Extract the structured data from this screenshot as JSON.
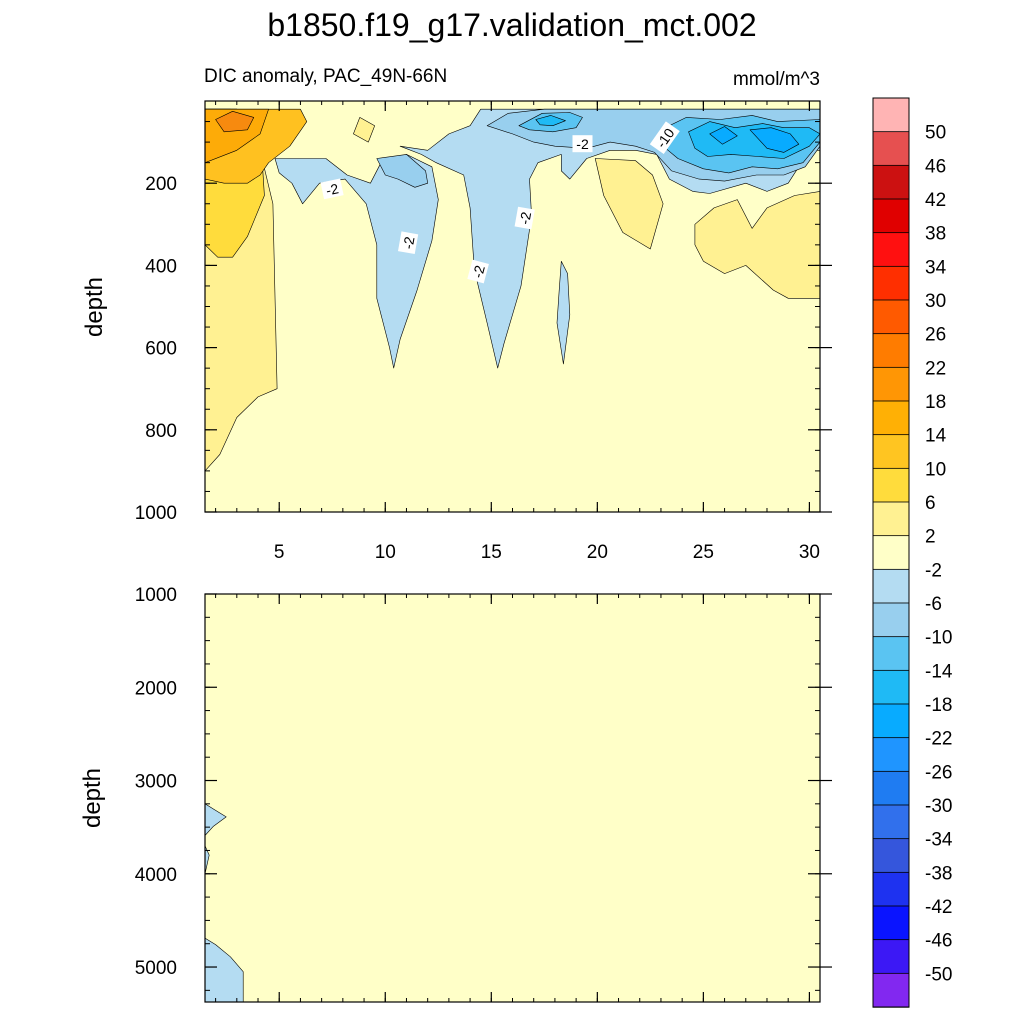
{
  "title": "b1850.f19_g17.validation_mct.002",
  "chart_data": [
    {
      "type": "heatmap",
      "subtitle": "DIC anomaly, PAC_49N-66N",
      "units": "mmol/m^3",
      "xlabel": "",
      "ylabel": "depth",
      "xlim": [
        1.5,
        30.5
      ],
      "ylim": [
        1000,
        0
      ],
      "x_ticks": [
        5,
        10,
        15,
        20,
        25,
        30
      ],
      "y_ticks": [
        200,
        400,
        600,
        800,
        1000
      ],
      "background_level": "-2 to 2",
      "regions": [
        {
          "level": "2",
          "color": "#fff192",
          "points": [
            [
              1.5,
              20
            ],
            [
              3,
              20
            ],
            [
              3.6,
              70
            ],
            [
              4.2,
              150
            ],
            [
              4.3,
              230
            ],
            [
              3.5,
              330
            ],
            [
              2.2,
              360
            ],
            [
              2.2,
              380
            ],
            [
              2.2,
              560
            ],
            [
              1.5,
              650
            ]
          ]
        },
        {
          "level": "2",
          "color": "#fff192",
          "points": [
            [
              1.5,
              900
            ],
            [
              2.2,
              860
            ],
            [
              3,
              770
            ],
            [
              4,
              720
            ],
            [
              4.9,
              700
            ],
            [
              4.7,
              250
            ],
            [
              4.1,
              120
            ],
            [
              3.3,
              60
            ],
            [
              2.7,
              20
            ],
            [
              1.5,
              20
            ]
          ]
        },
        {
          "level": "6",
          "color": "#ffdc3c",
          "points": [
            [
              1.5,
              20
            ],
            [
              3,
              20
            ],
            [
              3.6,
              70
            ],
            [
              4.2,
              150
            ],
            [
              4.3,
              230
            ],
            [
              3.5,
              330
            ],
            [
              2.8,
              380
            ],
            [
              2.1,
              380
            ],
            [
              1.5,
              350
            ]
          ]
        },
        {
          "level": "10",
          "color": "#ffc120",
          "points": [
            [
              1.5,
              20
            ],
            [
              6,
              20
            ],
            [
              6.3,
              50
            ],
            [
              5.5,
              110
            ],
            [
              4.5,
              150
            ],
            [
              4.1,
              180
            ],
            [
              3.5,
              200
            ],
            [
              2.4,
              200
            ],
            [
              1.5,
              190
            ]
          ]
        },
        {
          "level": "14",
          "color": "#fdab08",
          "points": [
            [
              1.5,
              20
            ],
            [
              4.5,
              20
            ],
            [
              4.1,
              80
            ],
            [
              3,
              120
            ],
            [
              1.5,
              150
            ]
          ]
        },
        {
          "level": "18",
          "color": "#f78a0f",
          "points": [
            [
              2,
              45
            ],
            [
              2.8,
              25
            ],
            [
              3.8,
              40
            ],
            [
              3.5,
              70
            ],
            [
              2.4,
              75
            ]
          ]
        },
        {
          "level": "2",
          "color": "#fff192",
          "points": [
            [
              8.8,
              40
            ],
            [
              9.5,
              60
            ],
            [
              9.2,
              100
            ],
            [
              8.5,
              80
            ]
          ]
        },
        {
          "level": "2",
          "color": "#fff192",
          "points": [
            [
              19.9,
              140
            ],
            [
              21.8,
              145
            ],
            [
              22.6,
              180
            ],
            [
              23.1,
              250
            ],
            [
              22.5,
              360
            ],
            [
              21.2,
              320
            ],
            [
              20.3,
              230
            ]
          ]
        },
        {
          "level": "2",
          "color": "#fff192",
          "points": [
            [
              24.6,
              300
            ],
            [
              25.5,
              260
            ],
            [
              26.6,
              240
            ],
            [
              27.3,
              310
            ],
            [
              28,
              260
            ],
            [
              29.3,
              230
            ],
            [
              30.5,
              220
            ],
            [
              30.5,
              480
            ],
            [
              29,
              480
            ],
            [
              28.3,
              460
            ],
            [
              27,
              400
            ],
            [
              26,
              420
            ],
            [
              25,
              390
            ],
            [
              24.6,
              350
            ]
          ]
        },
        {
          "level": "-2",
          "color": "#b4dcf2",
          "points": [
            [
              4.8,
              140
            ],
            [
              7.2,
              140
            ],
            [
              8.2,
              180
            ],
            [
              9.3,
              200
            ],
            [
              9.8,
              150
            ],
            [
              11,
              130
            ],
            [
              12.2,
              160
            ],
            [
              12.5,
              240
            ],
            [
              12.2,
              340
            ],
            [
              11.5,
              460
            ],
            [
              10.7,
              580
            ],
            [
              10.4,
              650
            ],
            [
              10.2,
              600
            ],
            [
              9.6,
              480
            ],
            [
              9.6,
              350
            ],
            [
              9.1,
              250
            ],
            [
              8.1,
              190
            ],
            [
              6.9,
              200
            ],
            [
              6.1,
              250
            ],
            [
              5.6,
              200
            ],
            [
              5,
              175
            ]
          ]
        },
        {
          "level": "-2",
          "color": "#b4dcf2",
          "points": [
            [
              10.7,
              110
            ],
            [
              12,
              120
            ],
            [
              13,
              80
            ],
            [
              14,
              60
            ],
            [
              14.5,
              20
            ],
            [
              30.5,
              20
            ],
            [
              30.5,
              120
            ],
            [
              30,
              120
            ],
            [
              29,
              200
            ],
            [
              28,
              220
            ],
            [
              27,
              200
            ],
            [
              25.3,
              225
            ],
            [
              24.5,
              220
            ],
            [
              23.4,
              190
            ],
            [
              22.8,
              130
            ],
            [
              21.8,
              120
            ],
            [
              20.6,
              120
            ],
            [
              19.5,
              140
            ],
            [
              18.7,
              190
            ],
            [
              18.3,
              170
            ],
            [
              18.3,
              130
            ],
            [
              17.2,
              150
            ],
            [
              16.8,
              190
            ],
            [
              16.9,
              280
            ],
            [
              16.4,
              450
            ],
            [
              15.6,
              590
            ],
            [
              15.3,
              650
            ],
            [
              14.8,
              540
            ],
            [
              14.2,
              410
            ],
            [
              14,
              260
            ],
            [
              13.7,
              180
            ],
            [
              12.4,
              150
            ],
            [
              11.7,
              130
            ]
          ]
        },
        {
          "level": "-2",
          "color": "#b4dcf2",
          "points": [
            [
              18.2,
              460
            ],
            [
              18.3,
              390
            ],
            [
              18.6,
              420
            ],
            [
              18.7,
              520
            ],
            [
              18.4,
              640
            ],
            [
              18.1,
              540
            ]
          ]
        },
        {
          "level": "-6",
          "color": "#98cfee",
          "points": [
            [
              9.6,
              140
            ],
            [
              11,
              130
            ],
            [
              11.9,
              170
            ],
            [
              12,
              200
            ],
            [
              11.4,
              210
            ],
            [
              10.6,
              190
            ],
            [
              10,
              180
            ]
          ]
        },
        {
          "level": "-6",
          "color": "#98cfee",
          "points": [
            [
              14.8,
              60
            ],
            [
              15.8,
              30
            ],
            [
              17.5,
              20
            ],
            [
              30.5,
              20
            ],
            [
              30.5,
              110
            ],
            [
              29.8,
              160
            ],
            [
              28.8,
              180
            ],
            [
              27.5,
              180
            ],
            [
              26,
              195
            ],
            [
              24.8,
              190
            ],
            [
              23.5,
              170
            ],
            [
              22.7,
              125
            ],
            [
              21.8,
              110
            ],
            [
              20.6,
              100
            ],
            [
              19.5,
              115
            ],
            [
              18,
              110
            ],
            [
              17,
              100
            ],
            [
              16,
              80
            ]
          ]
        },
        {
          "level": "-10",
          "color": "#5ac4f2",
          "points": [
            [
              16.3,
              60
            ],
            [
              17.4,
              30
            ],
            [
              18.7,
              28
            ],
            [
              19.3,
              40
            ],
            [
              19,
              65
            ],
            [
              17.9,
              75
            ],
            [
              16.8,
              70
            ]
          ]
        },
        {
          "level": "-10",
          "color": "#5ac4f2",
          "points": [
            [
              23,
              70
            ],
            [
              24.2,
              40
            ],
            [
              25.8,
              45
            ],
            [
              27.3,
              35
            ],
            [
              28.5,
              50
            ],
            [
              30.5,
              45
            ],
            [
              30.5,
              100
            ],
            [
              29.7,
              150
            ],
            [
              28.5,
              165
            ],
            [
              27.3,
              160
            ],
            [
              26.2,
              175
            ],
            [
              25,
              165
            ],
            [
              23.8,
              140
            ],
            [
              23.1,
              110
            ]
          ]
        },
        {
          "level": "-14",
          "color": "#1fbaf5",
          "points": [
            [
              17.1,
              45
            ],
            [
              17.8,
              35
            ],
            [
              18.5,
              48
            ],
            [
              17.9,
              60
            ],
            [
              17.3,
              58
            ]
          ]
        },
        {
          "level": "-14",
          "color": "#1fbaf5",
          "points": [
            [
              24.3,
              75
            ],
            [
              25.3,
              50
            ],
            [
              26.5,
              65
            ],
            [
              27.8,
              55
            ],
            [
              28.8,
              65
            ],
            [
              30,
              65
            ],
            [
              30.5,
              80
            ],
            [
              30,
              110
            ],
            [
              28.8,
              140
            ],
            [
              27.6,
              135
            ],
            [
              26.3,
              130
            ],
            [
              25.2,
              135
            ],
            [
              24.6,
              115
            ]
          ]
        },
        {
          "level": "-18",
          "color": "#08abff",
          "points": [
            [
              25.3,
              80
            ],
            [
              26,
              62
            ],
            [
              26.6,
              85
            ],
            [
              25.9,
              105
            ]
          ]
        },
        {
          "level": "-18",
          "color": "#08abff",
          "points": [
            [
              27.2,
              70
            ],
            [
              28.2,
              65
            ],
            [
              29.1,
              80
            ],
            [
              29.5,
              105
            ],
            [
              28.8,
              125
            ],
            [
              28,
              115
            ]
          ]
        }
      ],
      "labels": [
        {
          "text": "-2",
          "x": 7.5,
          "y": 215,
          "rotate": -12
        },
        {
          "text": "-2",
          "x": 11.1,
          "y": 345,
          "rotate": -80
        },
        {
          "text": "-2",
          "x": 14.4,
          "y": 415,
          "rotate": -75
        },
        {
          "text": "-2",
          "x": 16.6,
          "y": 285,
          "rotate": -80
        },
        {
          "text": "-2",
          "x": 19.3,
          "y": 105,
          "rotate": 0
        },
        {
          "text": "-10",
          "x": 23.2,
          "y": 90,
          "rotate": -55
        }
      ]
    },
    {
      "type": "heatmap",
      "subtitle": "",
      "units": "",
      "xlabel": "",
      "ylabel": "depth",
      "xlim": [
        1.5,
        30.5
      ],
      "ylim": [
        5375,
        1000
      ],
      "x_ticks": [
        5,
        10,
        15,
        20,
        25,
        30
      ],
      "y_ticks": [
        1000,
        2000,
        3000,
        4000,
        5000
      ],
      "background_level": "-2 to 2",
      "regions": [
        {
          "level": "-2",
          "color": "#b4dcf2",
          "points": [
            [
              1.5,
              3250
            ],
            [
              2,
              3320
            ],
            [
              2.5,
              3390
            ],
            [
              1.9,
              3490
            ],
            [
              1.5,
              3590
            ]
          ]
        },
        {
          "level": "-2",
          "color": "#b4dcf2",
          "points": [
            [
              1.5,
              3700
            ],
            [
              1.7,
              3800
            ],
            [
              1.5,
              4000
            ]
          ]
        },
        {
          "level": "-2",
          "color": "#b4dcf2",
          "points": [
            [
              1.5,
              4690
            ],
            [
              2,
              4760
            ],
            [
              2.7,
              4890
            ],
            [
              3.3,
              5050
            ],
            [
              3.3,
              5375
            ],
            [
              1.5,
              5375
            ]
          ]
        }
      ],
      "labels": []
    }
  ],
  "colorbar": {
    "labels": [
      "50",
      "46",
      "42",
      "38",
      "34",
      "30",
      "26",
      "22",
      "18",
      "14",
      "10",
      "6",
      "2",
      "-2",
      "-6",
      "-10",
      "-14",
      "-18",
      "-22",
      "-26",
      "-30",
      "-34",
      "-38",
      "-42",
      "-46",
      "-50"
    ],
    "colors": [
      "#ffb4b4",
      "#e65050",
      "#cc1111",
      "#e00000",
      "#ff1010",
      "#ff2f00",
      "#ff5a00",
      "#ff7c00",
      "#ff9605",
      "#ffb005",
      "#ffc521",
      "#ffdc3c",
      "#fff192",
      "#ffffc8",
      "#b4dcf2",
      "#98cfee",
      "#5ac4f2",
      "#1fbaf5",
      "#08abff",
      "#1f95ff",
      "#1f7cf2",
      "#3170ec",
      "#3556dc",
      "#1e32f0",
      "#0a14ff",
      "#3c18f5",
      "#8228f0"
    ]
  }
}
